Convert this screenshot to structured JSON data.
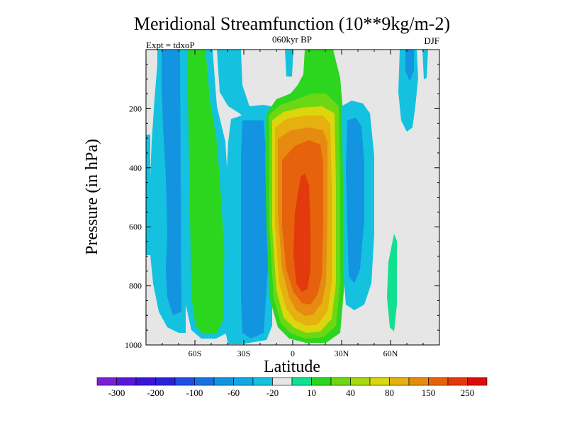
{
  "chart_data": {
    "type": "contour",
    "title": "Meridional Streamfunction (10**9kg/m-2)",
    "center_string": "060kyr BP",
    "left_string": "Expt = tdxoP",
    "right_string": "DJF",
    "xlabel": "Latitude",
    "ylabel": "Pressure (in hPa)",
    "xlim": [
      -90,
      90
    ],
    "ylim": [
      1000,
      0
    ],
    "x_ticks": [
      {
        "value": -60,
        "label": "60S"
      },
      {
        "value": -30,
        "label": "30S"
      },
      {
        "value": 0,
        "label": "0"
      },
      {
        "value": 30,
        "label": "30N"
      },
      {
        "value": 60,
        "label": "60N"
      }
    ],
    "y_ticks": [
      {
        "value": 200,
        "label": "200"
      },
      {
        "value": 400,
        "label": "400"
      },
      {
        "value": 600,
        "label": "600"
      },
      {
        "value": 800,
        "label": "800"
      },
      {
        "value": 1000,
        "label": "1000"
      }
    ],
    "colorbar": {
      "levels": [
        -300,
        -250,
        -200,
        -150,
        -100,
        -80,
        -60,
        -40,
        -20,
        -10,
        10,
        20,
        40,
        60,
        80,
        100,
        150,
        200,
        250,
        300
      ],
      "labels": [
        "-300",
        "-200",
        "-100",
        "-60",
        "-20",
        "10",
        "40",
        "80",
        "150",
        "250"
      ],
      "label_levels": [
        -300,
        -200,
        -100,
        -60,
        -20,
        10,
        40,
        80,
        150,
        250
      ],
      "colors": [
        "#7a1fd6",
        "#5a16d8",
        "#3b16d8",
        "#2a22d8",
        "#1e4fe0",
        "#1a72e0",
        "#1394e0",
        "#12a9e2",
        "#14c2e0",
        "#e6e6e6",
        "#10e090",
        "#2cd61e",
        "#6cd814",
        "#a6d810",
        "#dcd60c",
        "#e6b010",
        "#e68a10",
        "#e6620c",
        "#e23a0c",
        "#dc0c0c"
      ]
    },
    "approx_cells": [
      {
        "lat_range": [
          -80,
          -65
        ],
        "p_range": [
          0,
          960
        ],
        "value": -20
      },
      {
        "lat_range": [
          -62,
          -42
        ],
        "p_range": [
          0,
          970
        ],
        "value": 20
      },
      {
        "lat_range": [
          -42,
          -28
        ],
        "p_range": [
          120,
          980
        ],
        "value": -20
      },
      {
        "lat_range": [
          -28,
          -18
        ],
        "p_range": [
          120,
          990
        ],
        "value": -20
      },
      {
        "lat_range": [
          -12,
          18
        ],
        "p_range": [
          140,
          990
        ],
        "value": 100
      },
      {
        "lat_range": [
          -5,
          12
        ],
        "p_range": [
          280,
          880
        ],
        "value": 250
      },
      {
        "lat_range": [
          20,
          40
        ],
        "p_range": [
          120,
          920
        ],
        "value": -20
      },
      {
        "lat_range": [
          40,
          58
        ],
        "p_range": [
          0,
          900
        ],
        "value": -20
      },
      {
        "lat_range": [
          58,
          66
        ],
        "p_range": [
          600,
          950
        ],
        "value": 10
      },
      {
        "lat_range": [
          62,
          86
        ],
        "p_range": [
          0,
          220
        ],
        "value": -20
      }
    ]
  }
}
